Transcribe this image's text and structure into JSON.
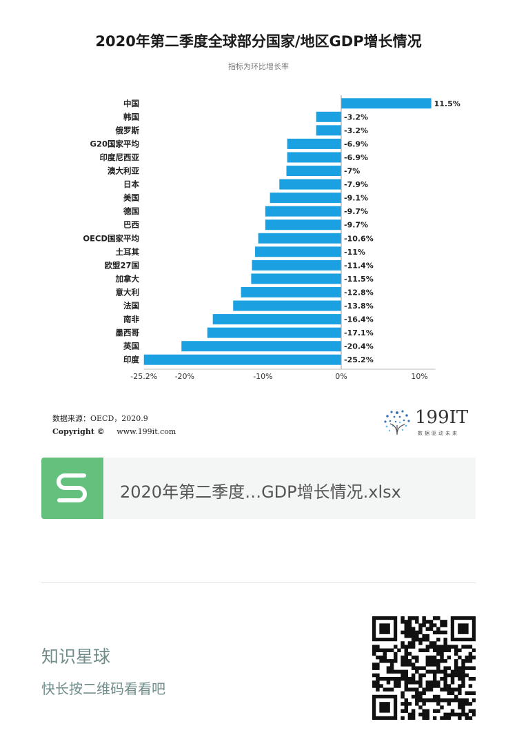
{
  "chart_data": {
    "type": "bar",
    "orientation": "horizontal",
    "title": "2020年第二季度全球部分国家/地区GDP增长情况",
    "subtitle": "指标为环比增长率",
    "categories": [
      "中国",
      "韩国",
      "俄罗斯",
      "G20国家平均",
      "印度尼西亚",
      "澳大利亚",
      "日本",
      "美国",
      "德国",
      "巴西",
      "OECD国家平均",
      "土耳其",
      "欧盟27国",
      "加拿大",
      "意大利",
      "法国",
      "南非",
      "墨西哥",
      "英国",
      "印度"
    ],
    "values": [
      11.5,
      -3.2,
      -3.2,
      -6.9,
      -6.9,
      -7,
      -7.9,
      -9.1,
      -9.7,
      -9.7,
      -10.6,
      -11,
      -11.4,
      -11.5,
      -12.8,
      -13.8,
      -16.4,
      -17.1,
      -20.4,
      -25.2
    ],
    "value_labels": [
      "11.5%",
      "-3.2%",
      "-3.2%",
      "-6.9%",
      "-6.9%",
      "-7%",
      "-7.9%",
      "-9.1%",
      "-9.7%",
      "-9.7%",
      "-10.6%",
      "-11%",
      "-11.4%",
      "-11.5%",
      "-12.8%",
      "-13.8%",
      "-16.4%",
      "-17.1%",
      "-20.4%",
      "-25.2%"
    ],
    "x_ticks": [
      -25.2,
      -20,
      -10,
      0,
      10
    ],
    "x_tick_labels": [
      "-25.2%",
      "-20%",
      "-10%",
      "0%",
      "10%"
    ],
    "xlim": [
      -25.2,
      11.5
    ],
    "bar_color": "#1ba1e2",
    "grid": false,
    "legend": "none"
  },
  "footer": {
    "source": "数据来源：OECD，2020.9",
    "copyright_label": "Copyright ©",
    "copyright_url": "www.199it.com",
    "brand_name": "199IT",
    "brand_slogan": "数据驱动未来"
  },
  "file_card": {
    "icon": "spreadsheet-s-icon",
    "icon_color": "#64c07d",
    "file_name": "2020年第二季度…GDP增长情况.xlsx"
  },
  "planet": {
    "title": "知识星球",
    "subtitle": "快长按二维码看看吧"
  }
}
